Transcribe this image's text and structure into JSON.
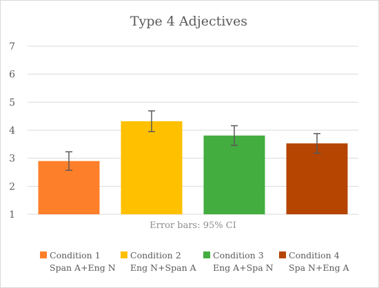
{
  "chart_data": {
    "type": "bar",
    "title": "Type 4 Adjectives",
    "subtitle": "",
    "xlabel": "",
    "ylabel": "",
    "ylim": [
      1,
      7
    ],
    "y_ticks": [
      "1",
      "2",
      "3",
      "4",
      "5",
      "6",
      "7"
    ],
    "grid": true,
    "legend_position": "bottom",
    "annotation": "Error bars: 95% CI",
    "categories": [
      "Condition 1",
      "Condition 2",
      "Condition 3",
      "Condition 4"
    ],
    "category_sublabels": [
      "Span A+Eng N",
      "Eng N+Span A",
      "Eng A+Spa N",
      "Spa N+Eng A"
    ],
    "values": [
      2.9,
      4.32,
      3.81,
      3.53
    ],
    "error_low": [
      2.57,
      3.95,
      3.46,
      3.18
    ],
    "error_high": [
      3.23,
      4.69,
      4.16,
      3.88
    ],
    "colors": [
      "#fe7f2a",
      "#ffc000",
      "#43ad3f",
      "#b54501"
    ]
  }
}
